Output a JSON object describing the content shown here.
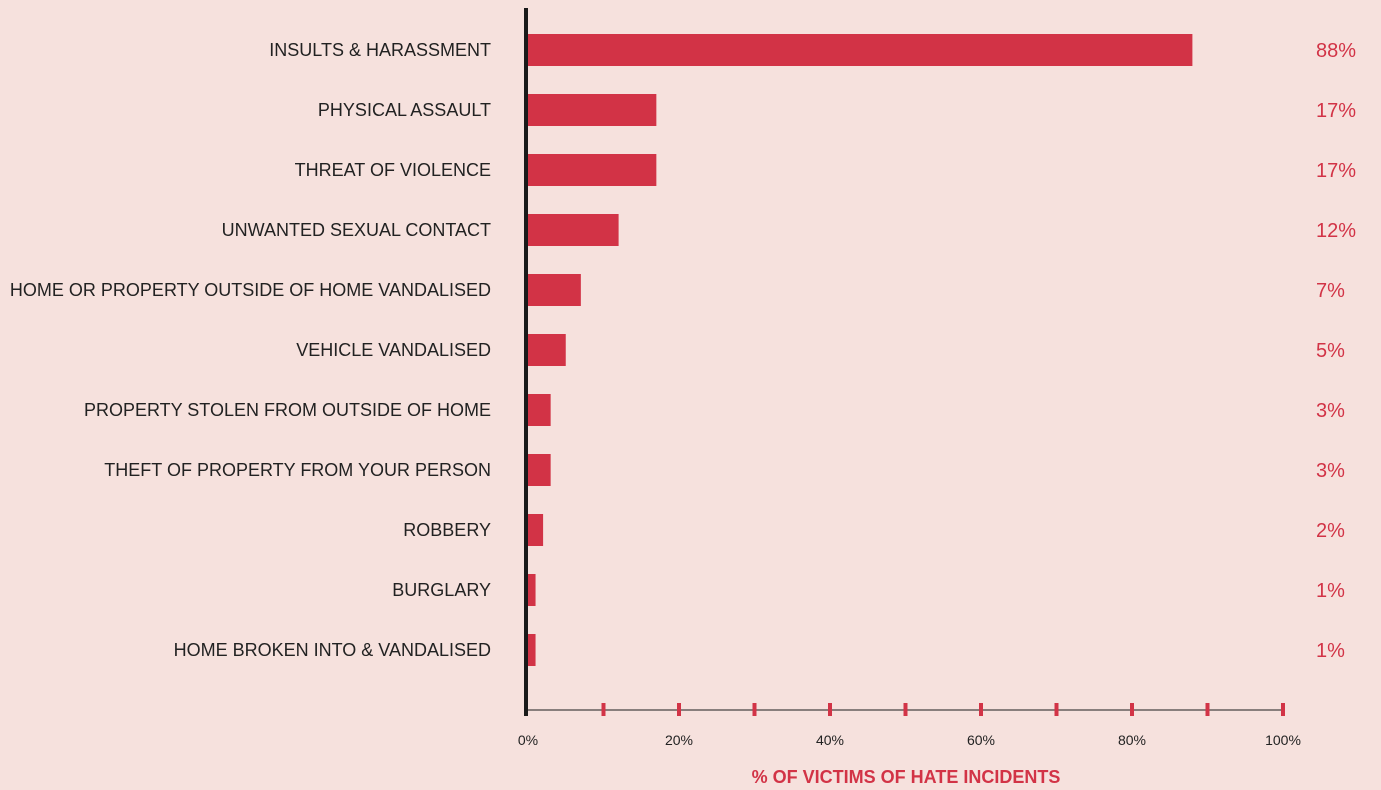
{
  "chart_data": {
    "type": "bar",
    "orientation": "horizontal",
    "categories": [
      "INSULTS & HARASSMENT",
      "PHYSICAL ASSAULT",
      "THREAT OF VIOLENCE",
      "UNWANTED SEXUAL CONTACT",
      "HOME OR PROPERTY OUTSIDE OF HOME VANDALISED",
      "VEHICLE VANDALISED",
      "PROPERTY STOLEN FROM OUTSIDE OF HOME",
      "THEFT OF PROPERTY FROM YOUR PERSON",
      "ROBBERY",
      "BURGLARY",
      "HOME BROKEN INTO & VANDALISED"
    ],
    "values": [
      88,
      17,
      17,
      12,
      7,
      5,
      3,
      3,
      2,
      1,
      1
    ],
    "value_labels": [
      "88%",
      "17%",
      "17%",
      "12%",
      "7%",
      "5%",
      "3%",
      "3%",
      "2%",
      "1%",
      "1%"
    ],
    "title": "",
    "xlabel": "% OF VICTIMS OF HATE INCIDENTS",
    "ylabel": "",
    "xlim": [
      0,
      100
    ],
    "x_ticks": [
      0,
      20,
      40,
      60,
      80,
      100
    ],
    "x_tick_labels": [
      "0%",
      "20%",
      "40%",
      "60%",
      "80%",
      "100%"
    ],
    "grid": false,
    "legend": "none",
    "colors": {
      "bar": "#d23346",
      "value_text": "#d23346",
      "axis_title": "#d23346",
      "background": "#f6e1dd",
      "axis_line": "#1a1a1a"
    }
  }
}
